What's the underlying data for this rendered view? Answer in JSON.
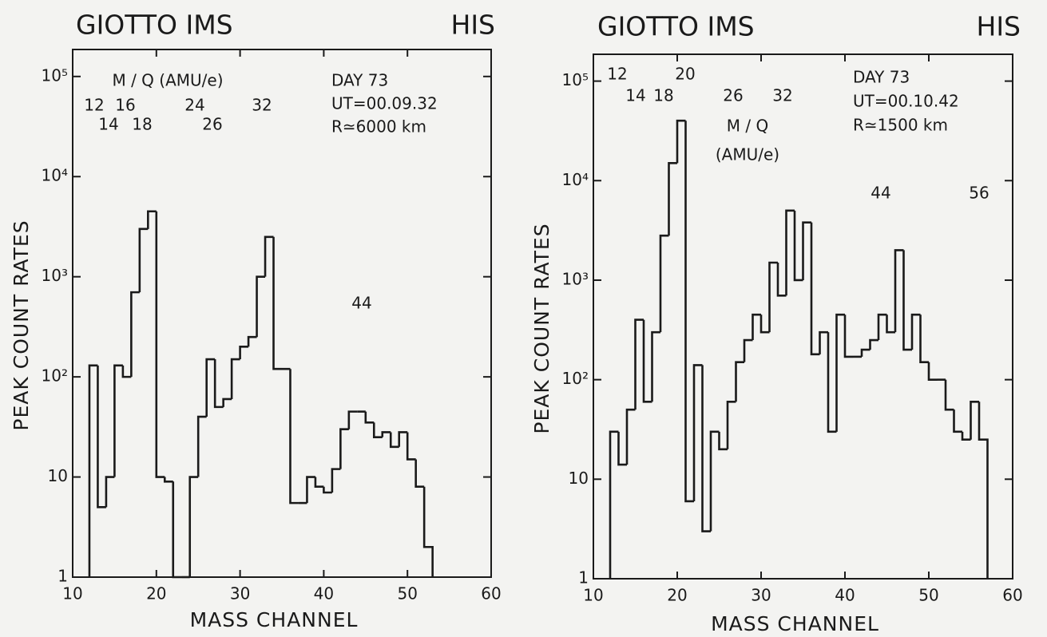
{
  "chart_data": [
    {
      "type": "histogram",
      "title": "GIOTTO IMS",
      "subtitle": "HIS",
      "xlabel": "MASS CHANNEL",
      "ylabel": "PEAK COUNT RATES",
      "log_y": true,
      "color": "#1a1a1a",
      "xlim": [
        10,
        60
      ],
      "xticks": [
        10,
        20,
        30,
        40,
        50,
        60
      ],
      "ylim": [
        1,
        186000
      ],
      "yticks": [
        1,
        10,
        {
          "value": 100,
          "label": "10²"
        },
        {
          "value": 1000,
          "label": "10³"
        },
        {
          "value": 10000,
          "label": "10⁴"
        },
        {
          "value": 100000,
          "label": "10⁵"
        }
      ],
      "bins": [
        12,
        13,
        14,
        15,
        16,
        17,
        18,
        19,
        20,
        21,
        22,
        23,
        24,
        25,
        26,
        27,
        28,
        29,
        30,
        31,
        32,
        33,
        34,
        35,
        36,
        37,
        38,
        39,
        40,
        41,
        42,
        43,
        44,
        45,
        46,
        47,
        48,
        49,
        50,
        51,
        52,
        53
      ],
      "values": [
        130,
        5,
        10,
        130,
        100,
        700,
        3000,
        4500,
        10,
        9,
        1,
        1,
        10,
        40,
        150,
        50,
        60,
        150,
        200,
        250,
        1000,
        2500,
        120,
        120,
        5.5,
        5.5,
        10,
        8,
        7,
        12,
        30,
        45,
        45,
        35,
        25,
        28,
        20,
        28,
        15,
        8,
        2
      ],
      "annotations": [
        "M / Q (AMU/e)",
        "12",
        "16",
        "14",
        "18",
        "24",
        "26",
        "32",
        "44",
        "DAY 73",
        "UT=00.09.32",
        "R≃6000 km"
      ]
    },
    {
      "type": "histogram",
      "title": "GIOTTO IMS",
      "subtitle": "HIS",
      "xlabel": "MASS CHANNEL",
      "ylabel": "PEAK COUNT RATES",
      "log_y": true,
      "color": "#1a1a1a",
      "xlim": [
        10,
        60
      ],
      "xticks": [
        10,
        20,
        30,
        40,
        50,
        60
      ],
      "ylim": [
        1,
        186000
      ],
      "yticks": [
        1,
        10,
        {
          "value": 100,
          "label": "10²"
        },
        {
          "value": 1000,
          "label": "10³"
        },
        {
          "value": 10000,
          "label": "10⁴"
        },
        {
          "value": 100000,
          "label": "10⁵"
        }
      ],
      "bins": [
        12,
        13,
        14,
        15,
        16,
        17,
        18,
        19,
        20,
        21,
        22,
        23,
        24,
        25,
        26,
        27,
        28,
        29,
        30,
        31,
        32,
        33,
        34,
        35,
        36,
        37,
        38,
        39,
        40,
        41,
        42,
        43,
        44,
        45,
        46,
        47,
        48,
        49,
        50,
        51,
        52,
        53,
        54,
        55,
        56,
        57
      ],
      "values": [
        30,
        14,
        50,
        400,
        60,
        300,
        2800,
        15000,
        40000,
        6,
        140,
        3,
        30,
        20,
        60,
        150,
        250,
        450,
        300,
        1500,
        700,
        5000,
        1000,
        3800,
        180,
        300,
        30,
        450,
        170,
        170,
        200,
        250,
        450,
        300,
        2000,
        200,
        450,
        150,
        100,
        100,
        50,
        30,
        25,
        60,
        25
      ],
      "annotations": [
        "12",
        "14",
        "18",
        "20",
        "26",
        "32",
        "M / Q",
        "(AMU/e)",
        "DAY 73",
        "UT=00.10.42",
        "R≃1500 km",
        "44",
        "56"
      ]
    }
  ]
}
